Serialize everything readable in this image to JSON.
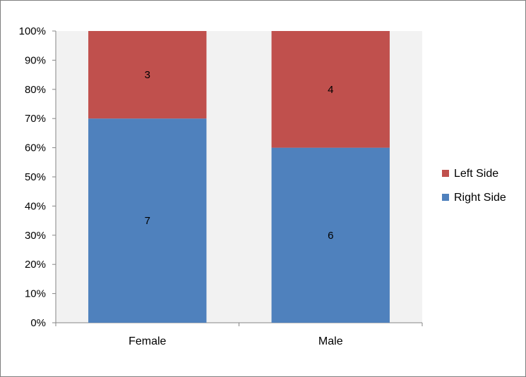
{
  "chart_data": {
    "type": "bar",
    "stacked": "percent",
    "categories": [
      "Female",
      "Male"
    ],
    "series": [
      {
        "name": "Right Side",
        "values": [
          7,
          6
        ],
        "color": "#4f81bd"
      },
      {
        "name": "Left Side",
        "values": [
          3,
          4
        ],
        "color": "#c0504d"
      }
    ],
    "y_ticks": [
      "0%",
      "10%",
      "20%",
      "30%",
      "40%",
      "50%",
      "60%",
      "70%",
      "80%",
      "90%",
      "100%"
    ],
    "ylim": [
      0,
      100
    ],
    "grid": false,
    "plot_background": "#f2f2f2",
    "legend_position": "right"
  }
}
